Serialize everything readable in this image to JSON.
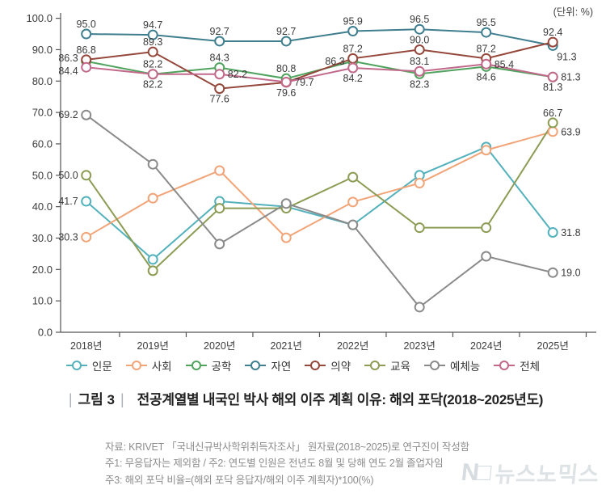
{
  "unit_label": "(단위: %)",
  "chart_data": {
    "type": "line",
    "x": [
      "2018년",
      "2019년",
      "2020년",
      "2021년",
      "2022년",
      "2023년",
      "2024년",
      "2025년"
    ],
    "ylim": [
      0,
      100
    ],
    "ytick_step": 10,
    "grid": false,
    "legend_position": "bottom",
    "series": [
      {
        "id": "humanities",
        "name": "인문",
        "color": "#53b1bb",
        "values": [
          41.7,
          23.2,
          41.7,
          40.0,
          34.2,
          50.0,
          59.0,
          31.8
        ],
        "label_pos": [
          "left",
          null,
          null,
          null,
          null,
          null,
          null,
          "right"
        ]
      },
      {
        "id": "social",
        "name": "사회",
        "color": "#f0a478",
        "values": [
          30.3,
          42.7,
          51.5,
          30.1,
          41.5,
          47.5,
          58.0,
          63.9
        ],
        "label_pos": [
          "left",
          null,
          null,
          null,
          null,
          null,
          null,
          "right"
        ]
      },
      {
        "id": "engineering",
        "name": "공학",
        "color": "#4fa35d",
        "values": [
          86.3,
          82.2,
          84.3,
          80.8,
          86.3,
          82.3,
          84.6,
          81.3
        ],
        "label_pos": [
          "leftup",
          "above",
          "above",
          "above",
          "left",
          "below",
          "below",
          "below"
        ]
      },
      {
        "id": "natural",
        "name": "자연",
        "color": "#3e7e8f",
        "values": [
          95.0,
          94.7,
          92.7,
          92.7,
          95.9,
          96.5,
          95.5,
          91.3
        ],
        "label_pos": [
          "above",
          "above",
          "above",
          "above",
          "above",
          "above",
          "above",
          "belowright"
        ]
      },
      {
        "id": "medicine",
        "name": "의약",
        "color": "#94473a",
        "values": [
          86.8,
          89.3,
          77.6,
          79.6,
          87.2,
          90.0,
          87.2,
          92.4
        ],
        "label_pos": [
          "above",
          "above",
          "below",
          "below",
          "above",
          "above",
          "above",
          "above"
        ]
      },
      {
        "id": "education",
        "name": "교육",
        "color": "#8c9c54",
        "values": [
          50.0,
          19.6,
          39.5,
          39.5,
          49.4,
          33.3,
          33.3,
          66.7
        ],
        "label_pos": [
          "left",
          null,
          null,
          null,
          null,
          null,
          null,
          "above"
        ]
      },
      {
        "id": "arts-pe",
        "name": "예체능",
        "color": "#8a8a8a",
        "values": [
          69.2,
          53.5,
          28.1,
          41.0,
          34.2,
          8.0,
          24.2,
          19.0
        ],
        "label_pos": [
          "left",
          null,
          null,
          null,
          null,
          null,
          null,
          "right"
        ]
      },
      {
        "id": "total",
        "name": "전체",
        "color": "#c2688a",
        "values": [
          84.4,
          82.2,
          82.2,
          79.7,
          84.2,
          83.1,
          85.4,
          81.3
        ],
        "label_pos": [
          "leftdown",
          "below",
          "right",
          "right",
          "below",
          "above",
          "right",
          "right"
        ]
      }
    ]
  },
  "caption": {
    "bar": "|",
    "fig_label": "그림 3",
    "title": "전공계열별 내국인 박사 해외 이주 계획 이유: 해외 포닥(2018~2025년도)"
  },
  "footnotes": [
    "자료: KRIVET 「국내신규박사학위취득자조사」 원자료(2018~2025)로 연구진이 작성함",
    "주1: 무응답자는 제외함 / 주2: 연도별 인원은 전년도 8월 및 당해 연도 2월 졸업자임",
    "주3: 해외 포닥 비율=(해외 포닥 응답자/해외 이주 계획자)*100(%)"
  ],
  "watermark": {
    "logo": "N□",
    "text": "뉴스노믹스"
  }
}
